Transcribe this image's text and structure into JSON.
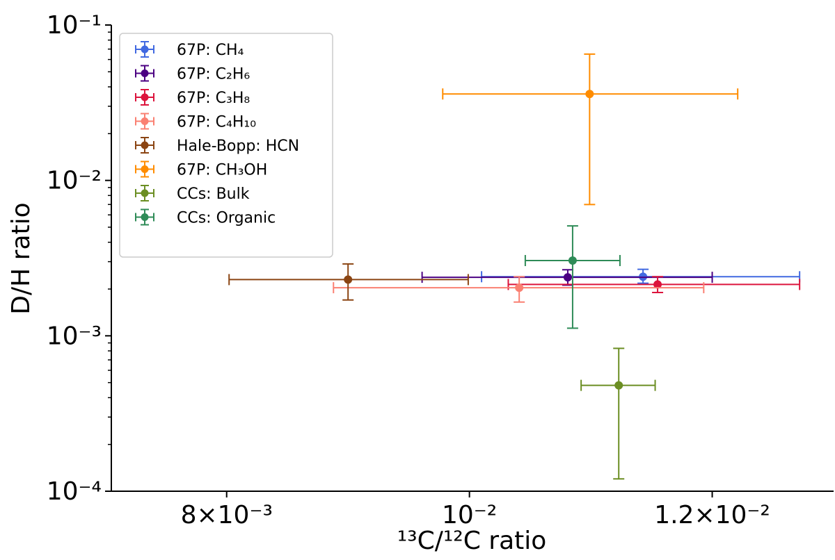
{
  "chart_data": {
    "type": "scatter",
    "xlabel": "¹³C/¹²C ratio",
    "ylabel": "D/H ratio",
    "x_scale": "linear",
    "y_scale": "log",
    "xlim": [
      0.00705,
      0.013
    ],
    "ylim": [
      0.0001,
      0.1
    ],
    "x_ticks": [
      {
        "value": 0.008,
        "label": "8×10⁻³"
      },
      {
        "value": 0.01,
        "label": "10⁻²"
      },
      {
        "value": 0.012,
        "label": "1.2×10⁻²"
      }
    ],
    "y_ticks": [
      {
        "value": 0.1,
        "label": "10⁻¹"
      },
      {
        "value": 0.01,
        "label": "10⁻²"
      },
      {
        "value": 0.001,
        "label": "10⁻³"
      },
      {
        "value": 0.0001,
        "label": "10⁻⁴"
      }
    ],
    "legend_position": "top-left",
    "series": [
      {
        "name": "67P: CH₄",
        "color": "#4169e1",
        "x": 0.01143,
        "y": 0.0024,
        "x_err": [
          0.0101,
          0.01272
        ],
        "y_err": [
          0.00218,
          0.00268
        ]
      },
      {
        "name": "67P: C₂H₆",
        "color": "#4b0082",
        "x": 0.01081,
        "y": 0.00238,
        "x_err": [
          0.00961,
          0.012
        ],
        "y_err": [
          0.00212,
          0.00266
        ]
      },
      {
        "name": "67P: C₃H₈",
        "color": "#dc143c",
        "x": 0.01155,
        "y": 0.00214,
        "x_err": [
          0.01032,
          0.01272
        ],
        "y_err": [
          0.0019,
          0.0024
        ]
      },
      {
        "name": "67P: C₄H₁₀",
        "color": "#fa8072",
        "x": 0.01041,
        "y": 0.00204,
        "x_err": [
          0.00888,
          0.01193
        ],
        "y_err": [
          0.00165,
          0.0024
        ]
      },
      {
        "name": "Hale-Bopp: HCN",
        "color": "#8b4513",
        "x": 0.009,
        "y": 0.0023,
        "x_err": [
          0.00802,
          0.00999
        ],
        "y_err": [
          0.0017,
          0.0029
        ]
      },
      {
        "name": "67P: CH₃OH",
        "color": "#ff8c00",
        "x": 0.01099,
        "y": 0.036,
        "x_err": [
          0.00978,
          0.01221
        ],
        "y_err": [
          0.007,
          0.065
        ]
      },
      {
        "name": "CCs: Bulk",
        "color": "#6b8e23",
        "x": 0.01123,
        "y": 0.00048,
        "x_err": [
          0.01092,
          0.01153
        ],
        "y_err": [
          0.00012,
          0.00083
        ]
      },
      {
        "name": "CCs: Organic",
        "color": "#2e8b57",
        "x": 0.01085,
        "y": 0.00305,
        "x_err": [
          0.01046,
          0.01124
        ],
        "y_err": [
          0.00112,
          0.0051
        ]
      }
    ]
  }
}
